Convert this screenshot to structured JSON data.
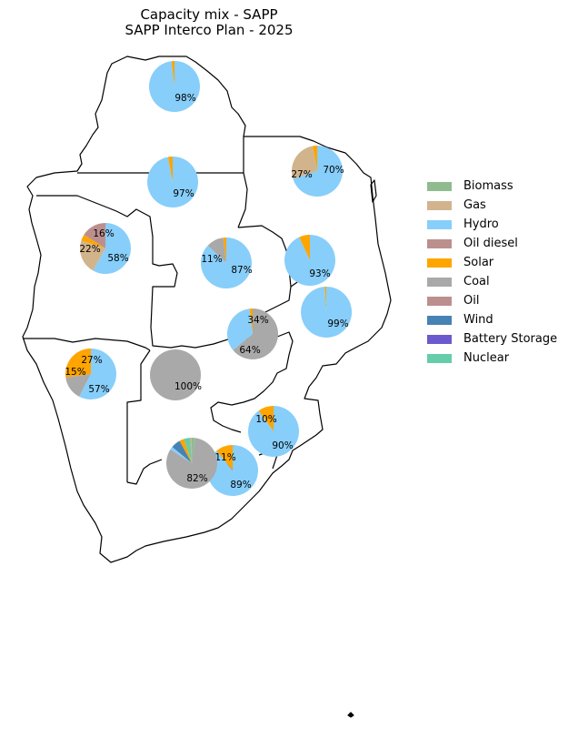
{
  "title": {
    "line1": "Capacity mix - SAPP",
    "line2": "SAPP Interco Plan - 2025"
  },
  "legend": [
    {
      "label": "Biomass",
      "color": "#8fbc8f"
    },
    {
      "label": "Gas",
      "color": "#d2b48c"
    },
    {
      "label": "Hydro",
      "color": "#87cefa"
    },
    {
      "label": "Oil diesel",
      "color": "#bc8f8f"
    },
    {
      "label": "Solar",
      "color": "#ffa500"
    },
    {
      "label": "Coal",
      "color": "#a9a9a9"
    },
    {
      "label": "Oil",
      "color": "#bc8f8f"
    },
    {
      "label": "Wind",
      "color": "#4682b4"
    },
    {
      "label": "Battery Storage",
      "color": "#6a5acd"
    },
    {
      "label": "Nuclear",
      "color": "#66cdaa"
    }
  ],
  "chart_data": [
    {
      "type": "pie",
      "region": "north-top",
      "slices": [
        {
          "label": "Solar",
          "value": 2
        },
        {
          "label": "Hydro",
          "value": 98
        }
      ],
      "labels": [
        {
          "text": "98%"
        }
      ]
    },
    {
      "type": "pie",
      "region": "north-middle",
      "slices": [
        {
          "label": "Solar",
          "value": 3
        },
        {
          "label": "Hydro",
          "value": 97
        }
      ],
      "labels": [
        {
          "text": "97%"
        }
      ]
    },
    {
      "type": "pie",
      "region": "north-east",
      "slices": [
        {
          "label": "Solar",
          "value": 3
        },
        {
          "label": "Gas",
          "value": 27
        },
        {
          "label": "Hydro",
          "value": 70
        }
      ],
      "labels": [
        {
          "text": "70%"
        },
        {
          "text": "27%"
        }
      ]
    },
    {
      "type": "pie",
      "region": "west",
      "slices": [
        {
          "label": "Oil diesel",
          "value": 16
        },
        {
          "label": "Solar",
          "value": 4
        },
        {
          "label": "Gas",
          "value": 22
        },
        {
          "label": "Hydro",
          "value": 58
        }
      ],
      "labels": [
        {
          "text": "16%"
        },
        {
          "text": "22%"
        },
        {
          "text": "58%"
        }
      ]
    },
    {
      "type": "pie",
      "region": "central",
      "slices": [
        {
          "label": "Solar",
          "value": 2
        },
        {
          "label": "Coal",
          "value": 11
        },
        {
          "label": "Hydro",
          "value": 87
        }
      ],
      "labels": [
        {
          "text": "11%"
        },
        {
          "text": "87%"
        }
      ]
    },
    {
      "type": "pie",
      "region": "east",
      "slices": [
        {
          "label": "Solar",
          "value": 7
        },
        {
          "label": "Hydro",
          "value": 93
        }
      ],
      "labels": [
        {
          "text": "93%"
        }
      ]
    },
    {
      "type": "pie",
      "region": "east-coast",
      "slices": [
        {
          "label": "Solar",
          "value": 1
        },
        {
          "label": "Hydro",
          "value": 99
        }
      ],
      "labels": [
        {
          "text": "99%"
        }
      ]
    },
    {
      "type": "pie",
      "region": "south-central",
      "slices": [
        {
          "label": "Solar",
          "value": 2
        },
        {
          "label": "Hydro",
          "value": 34
        },
        {
          "label": "Coal",
          "value": 64
        }
      ],
      "labels": [
        {
          "text": "34%"
        },
        {
          "text": "64%"
        }
      ]
    },
    {
      "type": "pie",
      "region": "south-west",
      "slices": [
        {
          "label": "Solar",
          "value": 27
        },
        {
          "label": "Coal",
          "value": 15
        },
        {
          "label": "Hydro",
          "value": 57
        }
      ],
      "labels": [
        {
          "text": "27%"
        },
        {
          "text": "15%"
        },
        {
          "text": "57%"
        }
      ]
    },
    {
      "type": "pie",
      "region": "south-middle",
      "slices": [
        {
          "label": "Coal",
          "value": 100
        }
      ],
      "labels": [
        {
          "text": "100%"
        }
      ]
    },
    {
      "type": "pie",
      "region": "south-east",
      "slices": [
        {
          "label": "Solar",
          "value": 10
        },
        {
          "label": "Hydro",
          "value": 90
        }
      ],
      "labels": [
        {
          "text": "10%"
        },
        {
          "text": "90%"
        }
      ]
    },
    {
      "type": "pie",
      "region": "south-lower",
      "slices": [
        {
          "label": "Solar",
          "value": 11
        },
        {
          "label": "Hydro",
          "value": 89
        }
      ],
      "labels": [
        {
          "text": "11%"
        },
        {
          "text": "89%"
        }
      ]
    },
    {
      "type": "pie",
      "region": "south-africa",
      "slices": [
        {
          "label": "Gas",
          "value": 1
        },
        {
          "label": "Nuclear",
          "value": 4
        },
        {
          "label": "Solar",
          "value": 3
        },
        {
          "label": "Wind",
          "value": 6
        },
        {
          "label": "Hydro",
          "value": 2
        },
        {
          "label": "Coal",
          "value": 82
        },
        {
          "label": "Biomass",
          "value": 2
        }
      ],
      "labels": [
        {
          "text": "82%"
        }
      ]
    }
  ]
}
